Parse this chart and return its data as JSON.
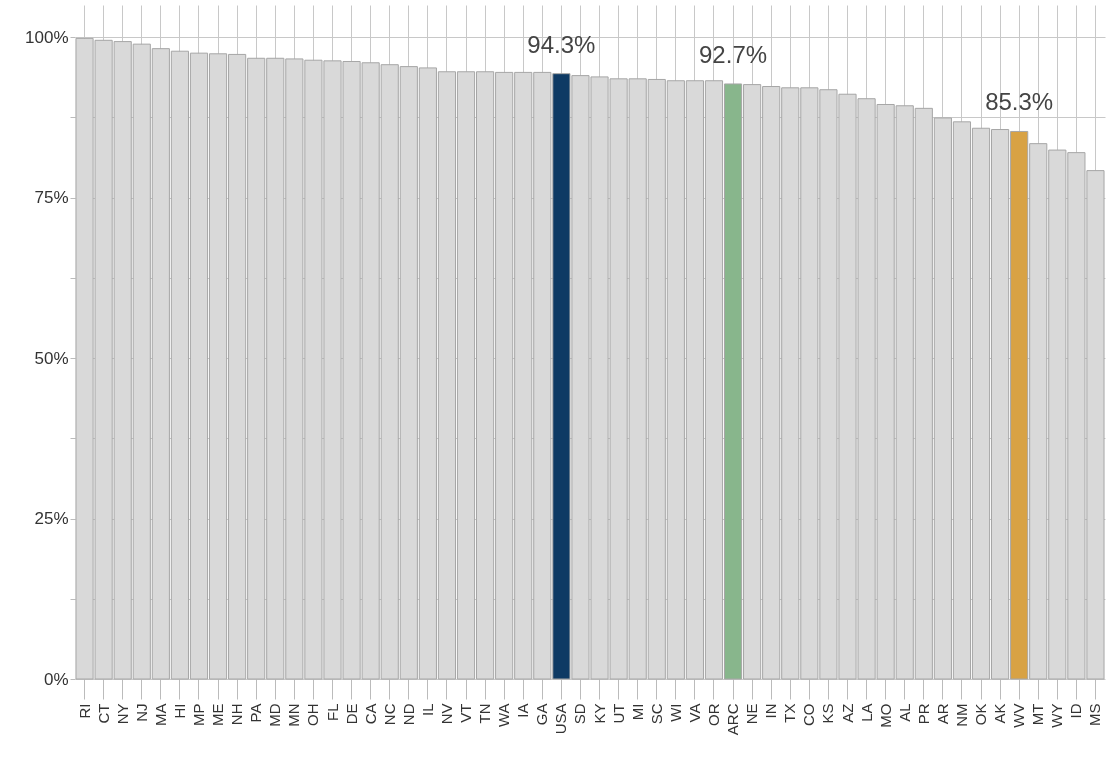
{
  "chart_data": {
    "type": "bar",
    "categories": [
      "RI",
      "CT",
      "NY",
      "NJ",
      "MA",
      "HI",
      "MP",
      "ME",
      "NH",
      "PA",
      "MD",
      "MN",
      "OH",
      "FL",
      "DE",
      "CA",
      "NC",
      "ND",
      "IL",
      "NV",
      "VT",
      "TN",
      "WA",
      "IA",
      "GA",
      "USA",
      "SD",
      "KY",
      "UT",
      "MI",
      "SC",
      "WI",
      "VA",
      "OR",
      "ARC",
      "NE",
      "IN",
      "TX",
      "CO",
      "KS",
      "AZ",
      "LA",
      "MO",
      "AL",
      "PR",
      "AR",
      "NM",
      "OK",
      "AK",
      "WV",
      "MT",
      "WY",
      "ID",
      "MS"
    ],
    "values": [
      99.8,
      99.5,
      99.3,
      98.9,
      98.2,
      97.8,
      97.5,
      97.4,
      97.3,
      96.7,
      96.7,
      96.6,
      96.4,
      96.3,
      96.2,
      96.0,
      95.7,
      95.4,
      95.2,
      94.6,
      94.6,
      94.6,
      94.5,
      94.5,
      94.5,
      94.3,
      94.0,
      93.8,
      93.5,
      93.5,
      93.4,
      93.2,
      93.2,
      93.2,
      92.7,
      92.6,
      92.3,
      92.1,
      92.1,
      91.8,
      91.1,
      90.4,
      89.5,
      89.3,
      88.9,
      87.4,
      86.8,
      85.8,
      85.6,
      85.3,
      83.4,
      82.4,
      82.0,
      79.2
    ],
    "colors": [
      "#d9d9d9",
      "#d9d9d9",
      "#d9d9d9",
      "#d9d9d9",
      "#d9d9d9",
      "#d9d9d9",
      "#d9d9d9",
      "#d9d9d9",
      "#d9d9d9",
      "#d9d9d9",
      "#d9d9d9",
      "#d9d9d9",
      "#d9d9d9",
      "#d9d9d9",
      "#d9d9d9",
      "#d9d9d9",
      "#d9d9d9",
      "#d9d9d9",
      "#d9d9d9",
      "#d9d9d9",
      "#d9d9d9",
      "#d9d9d9",
      "#d9d9d9",
      "#d9d9d9",
      "#d9d9d9",
      "#0e3a64",
      "#d9d9d9",
      "#d9d9d9",
      "#d9d9d9",
      "#d9d9d9",
      "#d9d9d9",
      "#d9d9d9",
      "#d9d9d9",
      "#d9d9d9",
      "#88b68c",
      "#d9d9d9",
      "#d9d9d9",
      "#d9d9d9",
      "#d9d9d9",
      "#d9d9d9",
      "#d9d9d9",
      "#d9d9d9",
      "#d9d9d9",
      "#d9d9d9",
      "#d9d9d9",
      "#d9d9d9",
      "#d9d9d9",
      "#d9d9d9",
      "#d9d9d9",
      "#d8a244",
      "#d9d9d9",
      "#d9d9d9",
      "#d9d9d9",
      "#d9d9d9"
    ],
    "value_labels": [
      null,
      null,
      null,
      null,
      null,
      null,
      null,
      null,
      null,
      null,
      null,
      null,
      null,
      null,
      null,
      null,
      null,
      null,
      null,
      null,
      null,
      null,
      null,
      null,
      null,
      "94.3%",
      null,
      null,
      null,
      null,
      null,
      null,
      null,
      null,
      "92.7%",
      null,
      null,
      null,
      null,
      null,
      null,
      null,
      null,
      null,
      null,
      null,
      null,
      null,
      null,
      "85.3%",
      null,
      null,
      null,
      null
    ],
    "ylim": [
      0,
      105
    ],
    "yticks": [
      {
        "value": 0,
        "label": "0%"
      },
      {
        "value": 12.5,
        "label": null
      },
      {
        "value": 25,
        "label": "25%"
      },
      {
        "value": 37.5,
        "label": null
      },
      {
        "value": 50,
        "label": "50%"
      },
      {
        "value": 62.5,
        "label": null
      },
      {
        "value": 75,
        "label": "75%"
      },
      {
        "value": 87.5,
        "label": null
      },
      {
        "value": 100,
        "label": "100%"
      }
    ],
    "grid": true
  }
}
